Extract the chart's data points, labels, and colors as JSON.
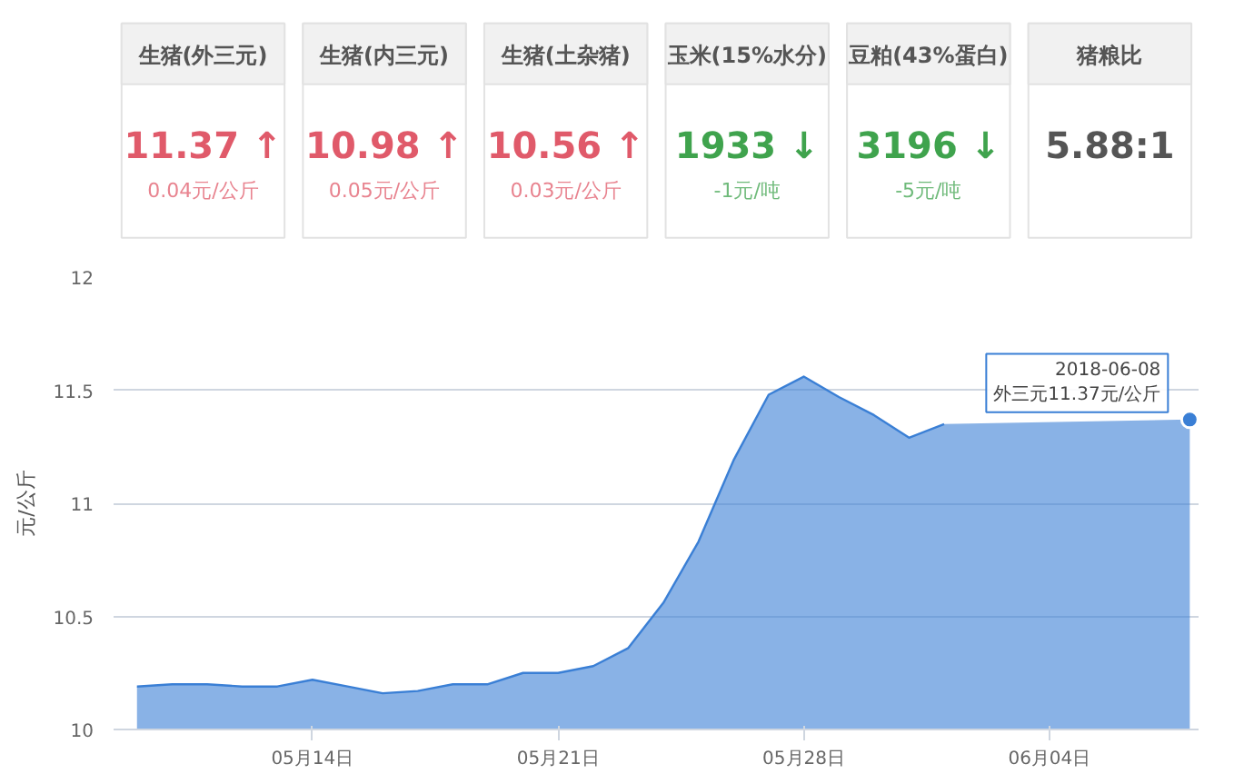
{
  "chart_data": [
    {
      "type": "other",
      "title": "生猪(外三元)",
      "series": [
        {
          "color": "#e05a6a"
        }
      ],
      "value_labels": [
        "11.37 ↑"
      ],
      "annotations": [
        "0.04元/公斤"
      ]
    },
    {
      "type": "other",
      "title": "生猪(内三元)",
      "series": [
        {
          "color": "#e05a6a"
        }
      ],
      "value_labels": [
        "10.98 ↑"
      ],
      "annotations": [
        "0.05元/公斤"
      ]
    },
    {
      "type": "other",
      "title": "生猪(土杂猪)",
      "series": [
        {
          "color": "#e05a6a"
        }
      ],
      "value_labels": [
        "10.56 ↑"
      ],
      "annotations": [
        "0.03元/公斤"
      ]
    },
    {
      "type": "other",
      "title": "玉米(15%水分)",
      "series": [
        {
          "color": "#3fa34d"
        }
      ],
      "value_labels": [
        "1933 ↓"
      ],
      "annotations": [
        "-1元/吨"
      ]
    },
    {
      "type": "other",
      "title": "豆粕(43%蛋白)",
      "series": [
        {
          "color": "#3fa34d"
        }
      ],
      "value_labels": [
        "3196 ↓"
      ],
      "annotations": [
        "-5元/吨"
      ]
    },
    {
      "type": "other",
      "title": "猪粮比",
      "series": [
        {
          "color": "#555555"
        }
      ],
      "value_labels": [
        "5.88:1"
      ]
    },
    {
      "type": "area",
      "ylabel": "元/公斤",
      "x": [
        "2018-05-09",
        "2018-05-10",
        "2018-05-11",
        "2018-05-12",
        "2018-05-13",
        "2018-05-14",
        "2018-05-15",
        "2018-05-16",
        "2018-05-17",
        "2018-05-18",
        "2018-05-19",
        "2018-05-20",
        "2018-05-21",
        "2018-05-22",
        "2018-05-23",
        "2018-05-24",
        "2018-05-25",
        "2018-05-26",
        "2018-05-27",
        "2018-05-28",
        "2018-05-29",
        "2018-05-30",
        "2018-05-31",
        "2018-06-01",
        "2018-06-02",
        "2018-06-03",
        "2018-06-04",
        "2018-06-05",
        "2018-06-06",
        "2018-06-07",
        "2018-06-08"
      ],
      "series": [
        {
          "color": "#3a7fd5",
          "values": [
            10.19,
            10.2,
            10.2,
            10.19,
            10.19,
            10.22,
            10.19,
            10.16,
            10.17,
            10.2,
            10.2,
            10.25,
            10.25,
            10.28,
            10.36,
            10.56,
            10.83,
            11.19,
            11.48,
            11.56,
            11.47,
            11.39,
            11.29,
            11.35,
            null,
            null,
            null,
            null,
            null,
            null,
            11.37
          ]
        }
      ],
      "xlim": [
        "2018-05-08T08:00",
        "2018-06-08T06:00"
      ],
      "xticks": [
        {
          "value": "2018-05-14",
          "label": "05月14日"
        },
        {
          "value": "2018-05-21",
          "label": "05月21日"
        },
        {
          "value": "2018-05-28",
          "label": "05月28日"
        },
        {
          "value": "2018-06-04",
          "label": "06月04日"
        }
      ],
      "ylim": [
        10,
        12
      ],
      "yticks": [
        10,
        10.5,
        11,
        11.5,
        12
      ],
      "grid": "y",
      "annotations": [
        {
          "text": "2018-06-08\n外三元11.37元/公斤",
          "x": "2018-06-08",
          "y": 11.37
        }
      ]
    }
  ]
}
